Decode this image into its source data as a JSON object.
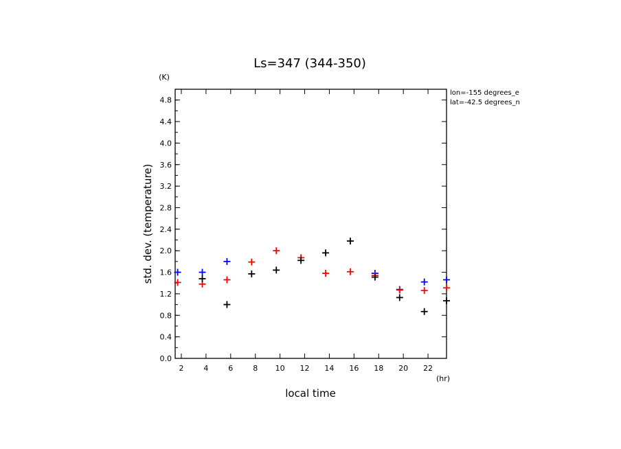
{
  "chart_data": {
    "type": "scatter",
    "title": "Ls=347 (344-350)",
    "xlabel": "local time",
    "ylabel": "std. dev. (temperature)",
    "x_unit": "(hr)",
    "y_unit": "(K)",
    "xlim": [
      1.5,
      23.5
    ],
    "ylim": [
      0.0,
      5.0
    ],
    "xticks": [
      2,
      4,
      6,
      8,
      10,
      12,
      14,
      16,
      18,
      20,
      22
    ],
    "yticks": [
      0.0,
      0.4,
      0.8,
      1.2,
      1.6,
      2.0,
      2.4,
      2.8,
      3.2,
      3.6,
      4.0,
      4.4,
      4.8
    ],
    "grid": false,
    "marker": "plus",
    "annotations": [
      "lon=-155 degrees_e",
      "lat=-42.5 degrees_n"
    ],
    "series": [
      {
        "color": "#0000ff",
        "x": [
          1.7,
          3.7,
          5.7,
          17.7,
          19.7,
          21.7,
          23.5
        ],
        "y": [
          1.6,
          1.6,
          1.8,
          1.58,
          1.28,
          1.42,
          1.46
        ]
      },
      {
        "color": "#ff0000",
        "x": [
          1.7,
          3.7,
          5.7,
          7.7,
          9.7,
          11.7,
          13.7,
          15.7,
          17.7,
          19.7,
          21.7,
          23.5
        ],
        "y": [
          1.41,
          1.38,
          1.46,
          1.79,
          2.0,
          1.87,
          1.58,
          1.61,
          1.54,
          1.27,
          1.26,
          1.31
        ]
      },
      {
        "color": "#000000",
        "x": [
          3.7,
          5.7,
          7.7,
          9.7,
          11.7,
          13.7,
          15.7,
          17.7,
          19.7,
          21.7,
          23.5
        ],
        "y": [
          1.48,
          1.0,
          1.57,
          1.64,
          1.82,
          1.96,
          2.18,
          1.51,
          1.13,
          0.87,
          1.07
        ]
      }
    ]
  }
}
